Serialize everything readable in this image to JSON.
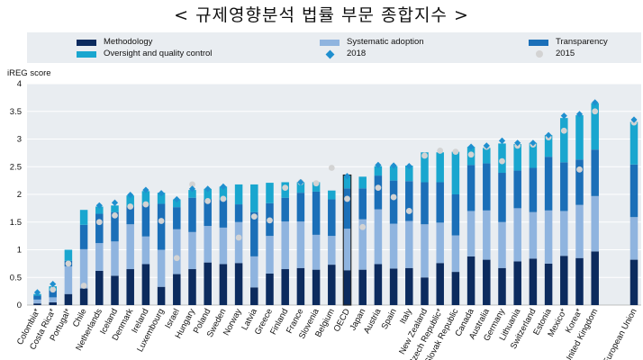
{
  "page": {
    "title": "< 규제영향분석 법률 부문 종합지수 >"
  },
  "colors": {
    "methodology": "#0c2b5e",
    "systematic": "#8fb4df",
    "transparency": "#1b6fb8",
    "oversight": "#19a6cf",
    "marker2018": "#1f8fcf",
    "marker2015": "#d3d3d3",
    "oecd_outline": "#222222",
    "grid": "#ffffff",
    "plot_bg": "#e9edf1"
  },
  "chart_data": {
    "type": "bar",
    "stacked": true,
    "title": "",
    "xlabel": "",
    "ylabel": "iREG score",
    "ylim": [
      0,
      4
    ],
    "yticks": [
      "0",
      "0.5",
      "1",
      "1.5",
      "2",
      "2.5",
      "3",
      "3.5",
      "4"
    ],
    "grid": true,
    "legend": [
      "Methodology",
      "Systematic adoption",
      "Transparency",
      "Oversight and quality control",
      "2018",
      "2015"
    ],
    "categories": [
      "Colombia*",
      "Costa Rica*",
      "Portugal*",
      "Chile",
      "Netherlands",
      "Iceland",
      "Denmark",
      "Ireland",
      "Luxembourg",
      "Israel",
      "Hungary",
      "Poland",
      "Sweden",
      "Norway",
      "Latvia",
      "Greece",
      "Finland",
      "France",
      "Slovenia",
      "Belgium",
      "OECD",
      "Japan",
      "Austria",
      "Spain",
      "Italy",
      "New Zealand",
      "Czech Republic*",
      "Slovak Republic",
      "Canada",
      "Australia",
      "Germany",
      "Lithuania",
      "Switzerland",
      "Estonia",
      "Mexico*",
      "Korea*",
      "United Kingdom",
      "European Union"
    ],
    "series": [
      {
        "name": "Methodology",
        "values": [
          0.03,
          0.05,
          0.2,
          0.3,
          0.62,
          0.53,
          0.65,
          0.74,
          0.33,
          0.56,
          0.65,
          0.77,
          0.74,
          0.76,
          0.32,
          0.57,
          0.65,
          0.67,
          0.64,
          0.73,
          0.63,
          0.64,
          0.74,
          0.66,
          0.67,
          0.5,
          0.76,
          0.6,
          0.88,
          0.82,
          0.67,
          0.79,
          0.84,
          0.75,
          0.89,
          0.85,
          0.97,
          0.82
        ]
      },
      {
        "name": "Systematic adoption",
        "values": [
          0.07,
          0.09,
          0.5,
          0.71,
          0.5,
          0.62,
          0.81,
          0.5,
          0.67,
          0.81,
          0.67,
          0.66,
          0.66,
          0.74,
          0.56,
          0.68,
          0.86,
          0.84,
          0.63,
          0.52,
          0.75,
          0.91,
          0.99,
          0.81,
          0.85,
          0.96,
          0.73,
          0.66,
          0.82,
          0.89,
          0.83,
          0.96,
          0.84,
          0.96,
          0.81,
          0.96,
          1.0,
          0.77
        ]
      },
      {
        "name": "Transparency",
        "values": [
          0.07,
          0.12,
          0.1,
          0.44,
          0.53,
          0.53,
          0.32,
          0.58,
          0.83,
          0.4,
          0.62,
          0.48,
          0.5,
          0.32,
          0.8,
          0.59,
          0.43,
          0.52,
          0.78,
          0.66,
          0.73,
          0.56,
          0.61,
          0.78,
          0.72,
          0.76,
          0.73,
          0.74,
          0.83,
          0.85,
          0.89,
          0.68,
          0.8,
          0.97,
          0.88,
          0.82,
          0.84,
          0.95
        ]
      },
      {
        "name": "Oversight and quality control",
        "values": [
          0.03,
          0.08,
          0.2,
          0.27,
          0.13,
          0.12,
          0.2,
          0.24,
          0.2,
          0.14,
          0.14,
          0.19,
          0.24,
          0.36,
          0.5,
          0.37,
          0.28,
          0.19,
          0.17,
          0.16,
          0.24,
          0.21,
          0.17,
          0.26,
          0.28,
          0.54,
          0.54,
          0.77,
          0.33,
          0.28,
          0.53,
          0.48,
          0.45,
          0.39,
          0.8,
          0.8,
          0.84,
          0.77
        ]
      }
    ],
    "marker_2018": [
      0.23,
      0.38,
      null,
      null,
      1.8,
      1.85,
      1.99,
      2.08,
      2.02,
      1.91,
      2.1,
      2.1,
      2.14,
      null,
      null,
      null,
      null,
      2.22,
      null,
      null,
      2.33,
      null,
      2.53,
      2.52,
      2.51,
      null,
      null,
      null,
      2.86,
      2.88,
      2.97,
      2.93,
      2.93,
      3.07,
      3.42,
      3.45,
      3.66,
      3.35
    ],
    "marker_2015": [
      null,
      0.28,
      0.75,
      0.35,
      1.5,
      1.62,
      1.78,
      1.82,
      1.52,
      0.85,
      2.18,
      1.88,
      1.92,
      1.22,
      1.6,
      1.53,
      2.12,
      2.22,
      2.2,
      2.48,
      1.92,
      1.41,
      2.12,
      1.95,
      1.7,
      2.7,
      2.79,
      2.77,
      2.72,
      2.86,
      2.6,
      2.88,
      2.9,
      3.03,
      3.15,
      2.45,
      3.5,
      3.3
    ]
  }
}
